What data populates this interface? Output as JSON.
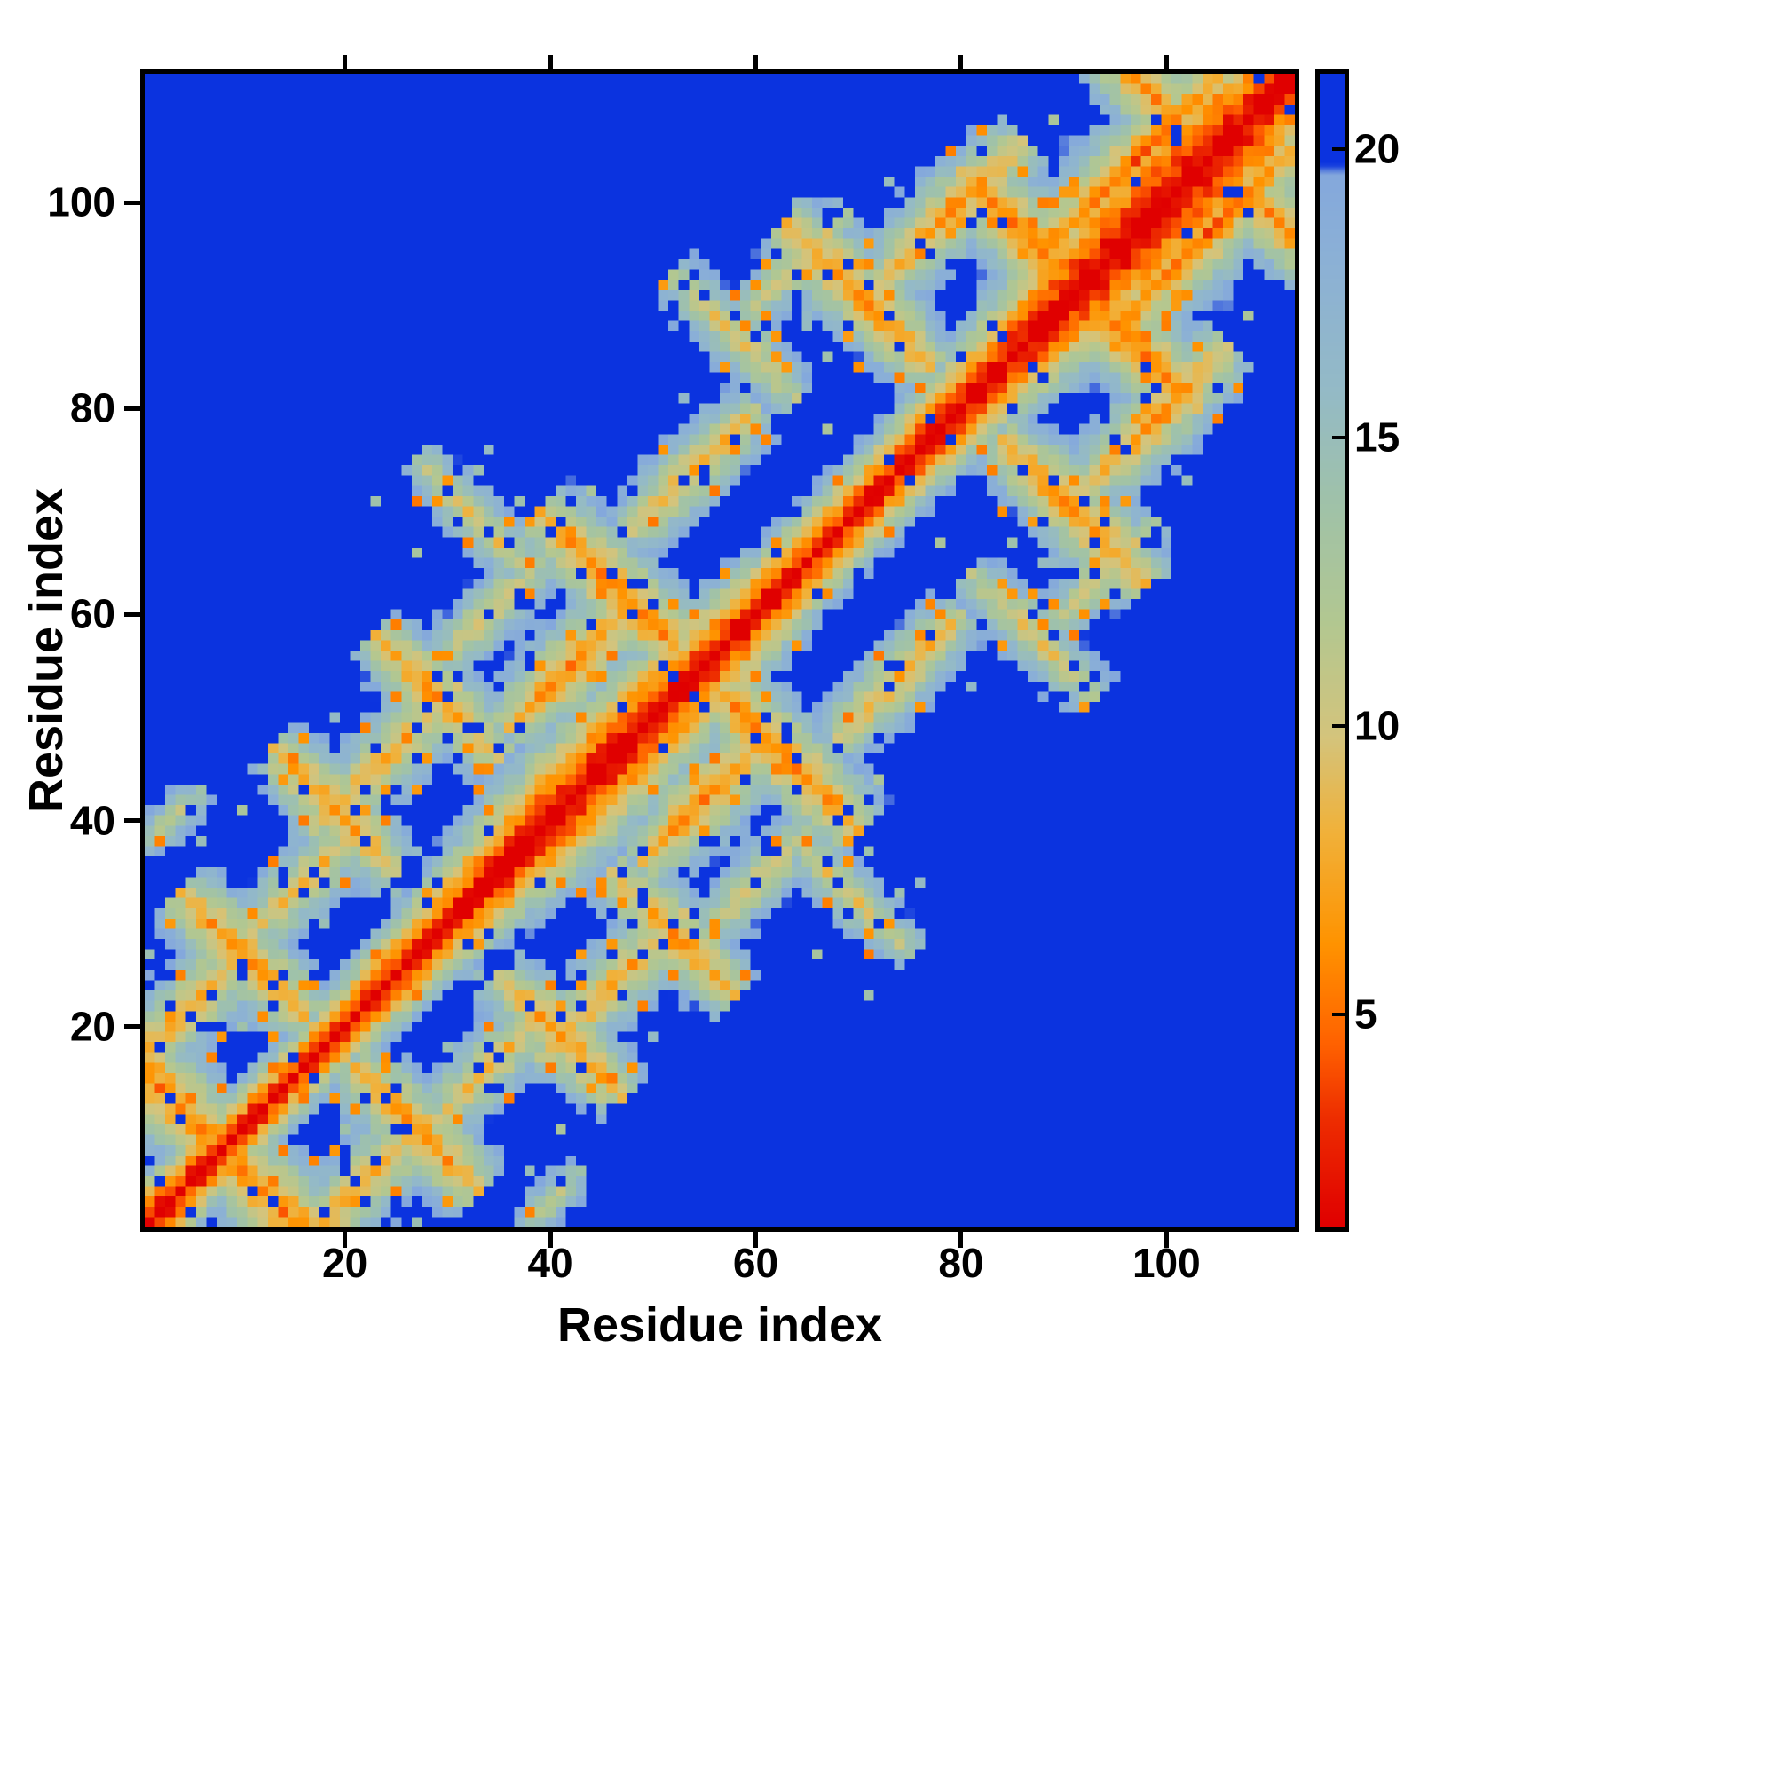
{
  "chart_data": {
    "type": "heatmap",
    "title": "",
    "xlabel": "Residue index",
    "ylabel": "Residue index",
    "n_residues": 112,
    "axis_ticks": [
      20,
      40,
      60,
      80,
      100
    ],
    "colorbar_ticks": [
      5,
      10,
      15,
      20
    ],
    "value_range": [
      1.3,
      21.3
    ],
    "cap_value": 20,
    "background_cap_color": "#0b33df",
    "diagonal_color": "#e00000",
    "colormap_stops": [
      [
        1.3,
        "#e00000"
      ],
      [
        3.2,
        "#ee2e00"
      ],
      [
        4.4,
        "#ff6000"
      ],
      [
        6.2,
        "#ff9300"
      ],
      [
        8.2,
        "#f0b23c"
      ],
      [
        9.8,
        "#d4c47c"
      ],
      [
        11.8,
        "#b2c791"
      ],
      [
        13.8,
        "#a0c2a8"
      ],
      [
        15.8,
        "#94bac6"
      ],
      [
        18.2,
        "#8bb0d6"
      ],
      [
        19.6,
        "#84a8dc"
      ],
      [
        19.75,
        "#0b33df"
      ],
      [
        21.3,
        "#0b33df"
      ]
    ],
    "diagonal_band": {
      "base_slope": 2.5,
      "amp1": 0.7,
      "freq1": 0.055,
      "amp2": 0.5,
      "freq2": 0.013
    },
    "noise": {
      "seed": 20,
      "amplitude": 1.6,
      "orange_speckle_prob": 0.05,
      "orange_speckle_value": 5.2,
      "blue_speckle_prob": 0.05,
      "outlier_dot_prob": 0.03,
      "outlier_dot_value": 12.5
    },
    "contact_patches": [
      {
        "a": 2,
        "b": 14,
        "len": 16,
        "o": -1,
        "s": 5.0,
        "w": 1.9
      },
      {
        "a": 5,
        "b": 22,
        "len": 12,
        "o": 1,
        "s": 7.0,
        "w": 2.0
      },
      {
        "a": 10,
        "b": 27,
        "len": 12,
        "o": -1,
        "s": 6.0,
        "w": 2.0
      },
      {
        "a": 16,
        "b": 34,
        "len": 10,
        "o": 1,
        "s": 8.0,
        "w": 2.1
      },
      {
        "a": 19,
        "b": 41,
        "len": 12,
        "o": -1,
        "s": 6.5,
        "w": 2.0
      },
      {
        "a": 24,
        "b": 46,
        "len": 14,
        "o": 1,
        "s": 7.5,
        "w": 2.0
      },
      {
        "a": 3,
        "b": 40,
        "len": 6,
        "o": 1,
        "s": 11.5,
        "w": 2.4
      },
      {
        "a": 29,
        "b": 52,
        "len": 12,
        "o": -1,
        "s": 6.5,
        "w": 2.1
      },
      {
        "a": 34,
        "b": 60,
        "len": 10,
        "o": 1,
        "s": 9.0,
        "w": 2.2
      },
      {
        "a": 33,
        "b": 69,
        "len": 12,
        "o": -1,
        "s": 9.5,
        "w": 2.2
      },
      {
        "a": 42,
        "b": 55,
        "len": 12,
        "o": 1,
        "s": 6.0,
        "w": 2.0
      },
      {
        "a": 47,
        "b": 62,
        "len": 16,
        "o": -1,
        "s": 5.5,
        "w": 1.9
      },
      {
        "a": 54,
        "b": 74,
        "len": 12,
        "o": 1,
        "s": 7.5,
        "w": 2.1
      },
      {
        "a": 58,
        "b": 87,
        "len": 12,
        "o": -1,
        "s": 9.0,
        "w": 2.2
      },
      {
        "a": 64,
        "b": 94,
        "len": 10,
        "o": 1,
        "s": 9.5,
        "w": 2.2
      },
      {
        "a": 70,
        "b": 91,
        "len": 14,
        "o": -1,
        "s": 6.0,
        "w": 2.0
      },
      {
        "a": 79,
        "b": 99,
        "len": 14,
        "o": 1,
        "s": 6.5,
        "w": 2.0
      },
      {
        "a": 86,
        "b": 97,
        "len": 12,
        "o": -1,
        "s": 5.5,
        "w": 1.9
      },
      {
        "a": 97,
        "b": 104,
        "len": 16,
        "o": 1,
        "s": 4.6,
        "w": 2.2
      },
      {
        "a": 99,
        "b": 110,
        "len": 12,
        "o": -1,
        "s": 6.0,
        "w": 2.0
      }
    ]
  }
}
